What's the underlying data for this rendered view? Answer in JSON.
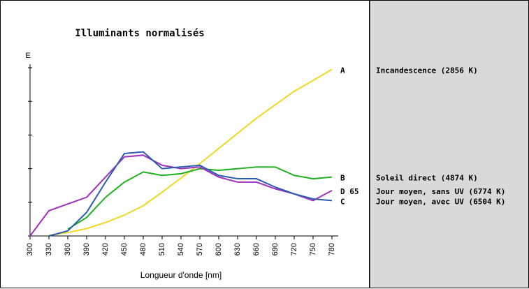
{
  "chart_data": {
    "type": "line",
    "title": "Illuminants normalisés",
    "x_label": "Longueur d'onde [nm]",
    "y_label": "E",
    "x": [
      300,
      330,
      360,
      390,
      420,
      450,
      480,
      510,
      540,
      570,
      600,
      630,
      660,
      690,
      720,
      750,
      780
    ],
    "xlim": [
      300,
      790
    ],
    "xticks": [
      300,
      330,
      360,
      390,
      420,
      450,
      480,
      510,
      540,
      570,
      600,
      630,
      660,
      690,
      720,
      750,
      780
    ],
    "ylim": [
      0,
      5
    ],
    "yticks": [
      0,
      1,
      2,
      3,
      4,
      5
    ],
    "series": [
      {
        "name": "A",
        "description": "Incandescence (2856 K)",
        "color": "#f0d820",
        "values": [
          null,
          0.02,
          0.1,
          0.22,
          0.4,
          0.62,
          0.9,
          1.3,
          1.72,
          2.15,
          2.6,
          3.05,
          3.5,
          3.9,
          4.3,
          4.62,
          4.95
        ]
      },
      {
        "name": "B",
        "description": "Soleil direct (4874 K)",
        "color": "#22b022",
        "values": [
          null,
          null,
          0.2,
          0.55,
          1.15,
          1.6,
          1.9,
          1.8,
          1.85,
          2.0,
          1.95,
          2.0,
          2.05,
          2.05,
          1.8,
          1.7,
          1.75
        ]
      },
      {
        "name": "D 65",
        "description": "Jour moyen, sans UV (6774 K)",
        "color": "#a030c0",
        "values": [
          0,
          0.75,
          0.95,
          1.15,
          1.75,
          2.35,
          2.4,
          2.1,
          2.0,
          2.05,
          1.75,
          1.6,
          1.6,
          1.4,
          1.25,
          1.05,
          1.35
        ]
      },
      {
        "name": "C",
        "description": "Jour moyen, avec UV (6504 K)",
        "color": "#2a5db0",
        "values": [
          null,
          0.0,
          0.15,
          0.7,
          1.6,
          2.45,
          2.5,
          2.0,
          2.05,
          2.1,
          1.8,
          1.7,
          1.7,
          1.45,
          1.25,
          1.1,
          1.05
        ]
      }
    ]
  }
}
